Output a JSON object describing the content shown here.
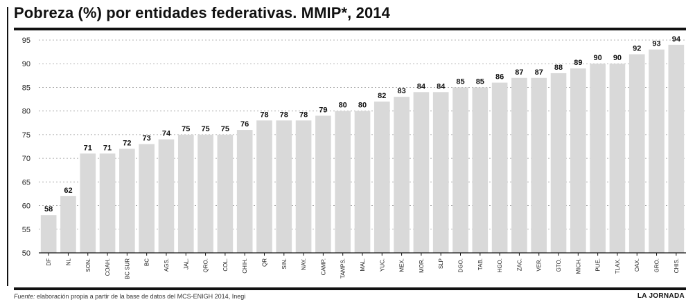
{
  "header": {
    "title": "Pobreza (%) por entidades federativas. MMIP*, 2014"
  },
  "footer": {
    "source_lead": "Fuente:",
    "source_rest": " elaboración propia a partir de la base de datos del MCS-ENIGH 2014, Inegi",
    "brand": "LA JORNADA"
  },
  "colors": {
    "bar": "#d9d9d9",
    "grid": "#9a9a9a",
    "axis": "#111111"
  },
  "chart_data": {
    "type": "bar",
    "title": "Pobreza (%) por entidades federativas. MMIP*, 2014",
    "xlabel": "",
    "ylabel": "",
    "ylim": [
      50,
      95
    ],
    "yticks": [
      50,
      55,
      60,
      65,
      70,
      75,
      80,
      85,
      90,
      95
    ],
    "grid": true,
    "categories": [
      "DF",
      "NL",
      "SON.",
      "COAH.",
      "BC SUR",
      "BC",
      "AGS.",
      "JAL.",
      "QRO.",
      "COL.",
      "CHIH.",
      "QR",
      "SIN.",
      "NAY.",
      "CAMP.",
      "TAMPS.",
      "MAL.",
      "YUC.",
      "MEX.",
      "MOR.",
      "SLP",
      "DGO.",
      "TAB.",
      "HGO.",
      "ZAC.",
      "VER.",
      "GTO.",
      "MICH.",
      "PUE.",
      "TLAX.",
      "OAX.",
      "GRO.",
      "CHIS."
    ],
    "values": [
      58,
      62,
      71,
      71,
      72,
      73,
      74,
      75,
      75,
      75,
      76,
      78,
      78,
      78,
      79,
      80,
      80,
      82,
      83,
      84,
      84,
      85,
      85,
      86,
      87,
      87,
      88,
      89,
      90,
      90,
      92,
      93,
      94
    ]
  }
}
